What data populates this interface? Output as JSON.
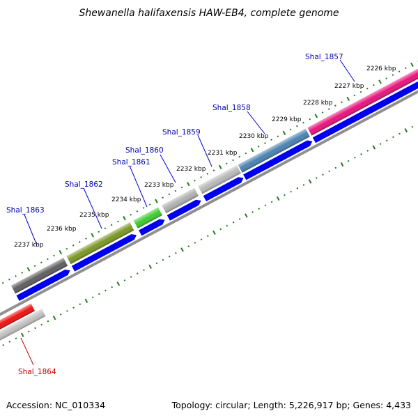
{
  "title": "Shewanella halifaxensis HAW-EB4, complete genome",
  "footer": {
    "accession": "Accession: NC_010334",
    "summary": "Topology: circular; Length: 5,226,917 bp; Genes: 4,433"
  },
  "colors": {
    "cds": "#0000ee",
    "backbone": "#909090",
    "tick": "#1e7a1e",
    "label_forward": "#0000aa",
    "label_reverse": "#cc0000"
  },
  "tick_labels": [
    {
      "text": "2226 kbp",
      "kbp": 2226
    },
    {
      "text": "2227 kbp",
      "kbp": 2227
    },
    {
      "text": "2228 kbp",
      "kbp": 2228
    },
    {
      "text": "2229 kbp",
      "kbp": 2229
    },
    {
      "text": "2230 kbp",
      "kbp": 2230
    },
    {
      "text": "2231 kbp",
      "kbp": 2231
    },
    {
      "text": "2232 kbp",
      "kbp": 2232
    },
    {
      "text": "2233 kbp",
      "kbp": 2233
    },
    {
      "text": "2234 kbp",
      "kbp": 2234
    },
    {
      "text": "2235 kbp",
      "kbp": 2235
    },
    {
      "text": "2236 kbp",
      "kbp": 2236
    },
    {
      "text": "2237 kbp",
      "kbp": 2237
    }
  ],
  "genes": [
    {
      "label": "Shal_1857",
      "strand": "reverse_ring_outer",
      "color": "#e8127a"
    },
    {
      "label": "Shal_1858",
      "strand": "outer",
      "color": "#4a82b0"
    },
    {
      "label": "Shal_1859",
      "strand": "outer",
      "color": "#b8b8b8"
    },
    {
      "label": "Shal_1860",
      "strand": "outer",
      "color": "#3ecb2e"
    },
    {
      "label": "Shal_1861",
      "strand": "outer",
      "color": "#b0b0b0"
    },
    {
      "label": "Shal_1862",
      "strand": "outer",
      "color": "#7a9624"
    },
    {
      "label": "Shal_1863",
      "strand": "outer",
      "color": "#5e5e5e"
    },
    {
      "label": "Shal_1864",
      "strand": "inner",
      "color": "#ee1010"
    }
  ]
}
